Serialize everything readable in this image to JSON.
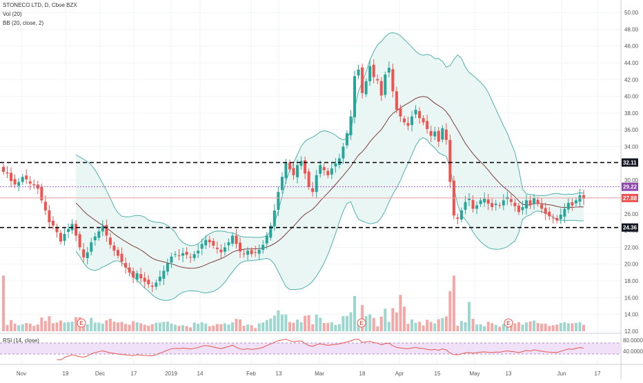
{
  "header": {
    "symbol_line": "STONECO LTD, D, Cboe BZX",
    "vol_label": "Vol (20)",
    "bb_label": "BB (20, close, 2)",
    "rsi_label": "RSI (14, close)"
  },
  "colors": {
    "up": "#26a69a",
    "down": "#ef5350",
    "vol_up": "#9bd6cf",
    "vol_down": "#f4a8a6",
    "bb_band": "#4fb0ad",
    "bb_fill": "#e9f6f4",
    "bb_basis": "#7d3c3c",
    "rsi_line": "#e4574e",
    "rsi_band": "#f0e0f8",
    "dashed": "#000000",
    "price_line": "#f0a0a0",
    "purple": "#9b59b6"
  },
  "events": [
    {
      "label": "E",
      "x_label": "Dec"
    },
    {
      "label": "E",
      "x_label": "Mar 18"
    },
    {
      "label": "E",
      "x_label": "May 13"
    }
  ],
  "chart_data": {
    "type": "candlestick",
    "title": "STONECO LTD, D, Cboe BZX",
    "y_axis": {
      "min": 12,
      "max": 50,
      "ticks": [
        "50.00",
        "48.00",
        "46.00",
        "44.00",
        "42.00",
        "40.00",
        "38.00",
        "36.00",
        "34.00",
        "32.00",
        "30.00",
        "28.00",
        "26.00",
        "24.00",
        "22.00",
        "20.00",
        "18.00",
        "16.00",
        "14.00",
        "12.00"
      ]
    },
    "x_ticks": [
      "Nov",
      "19",
      "Dec",
      "17",
      "2019",
      "14",
      "Feb",
      "13",
      "Mar",
      "18",
      "Apr",
      "15",
      "May",
      "13",
      "Jun",
      "17"
    ],
    "levels": [
      {
        "label": "32.11",
        "value": 32.11,
        "style": "dashed"
      },
      {
        "label": "29.22",
        "value": 29.22,
        "style": "dotted-purple"
      },
      {
        "label": "27.88",
        "value": 27.88,
        "style": "solid-red"
      },
      {
        "label": "24.36",
        "value": 24.36,
        "style": "dashed"
      }
    ],
    "closes": [
      31.0,
      30.8,
      29.9,
      29.5,
      29.8,
      30.4,
      30.1,
      29.6,
      29.4,
      29.0,
      27.6,
      26.4,
      25.0,
      24.6,
      23.8,
      22.7,
      23.6,
      24.2,
      24.8,
      23.4,
      22.0,
      20.8,
      21.4,
      22.6,
      23.3,
      23.9,
      24.5,
      23.4,
      22.3,
      21.6,
      21.0,
      20.3,
      19.6,
      19.0,
      18.4,
      18.9,
      18.3,
      17.9,
      17.6,
      17.3,
      17.8,
      18.5,
      19.2,
      20.1,
      20.9,
      21.2,
      21.0,
      21.3,
      21.1,
      20.8,
      21.2,
      21.6,
      22.4,
      22.9,
      22.6,
      22.2,
      21.8,
      21.4,
      22.0,
      22.6,
      23.4,
      22.4,
      21.5,
      21.2,
      21.6,
      21.2,
      21.4,
      21.7,
      22.3,
      23.4,
      24.6,
      26.4,
      28.6,
      30.4,
      32.1,
      31.3,
      30.6,
      31.8,
      32.3,
      30.8,
      29.2,
      28.6,
      30.6,
      31.8,
      31.2,
      30.6,
      31.4,
      32.0,
      32.6,
      34.0,
      35.6,
      37.6,
      42.4,
      43.2,
      40.4,
      41.8,
      43.6,
      42.3,
      41.9,
      40.1,
      42.6,
      43.4,
      40.6,
      38.4,
      37.6,
      36.9,
      36.5,
      37.6,
      38.4,
      37.4,
      36.9,
      36.1,
      35.3,
      35.8,
      34.6,
      36.2,
      34.8,
      29.8,
      25.8,
      25.4,
      26.4,
      27.4,
      27.8,
      26.6,
      27.0,
      27.6,
      27.8,
      27.2,
      26.8,
      27.2,
      27.0,
      27.6,
      28.0,
      27.4,
      26.9,
      26.2,
      26.8,
      27.6,
      27.0,
      27.9,
      27.2,
      26.6,
      26.0,
      25.7,
      25.5,
      25.2,
      25.9,
      26.6,
      27.3,
      27.0,
      27.6,
      28.2,
      27.8
    ],
    "volume": {
      "min": 0,
      "max": 10000000
    },
    "rsi": {
      "min": 0,
      "max": 100,
      "upper": 70,
      "lower": 30,
      "ticks": [
        "80.0000",
        "40.0000"
      ]
    }
  }
}
